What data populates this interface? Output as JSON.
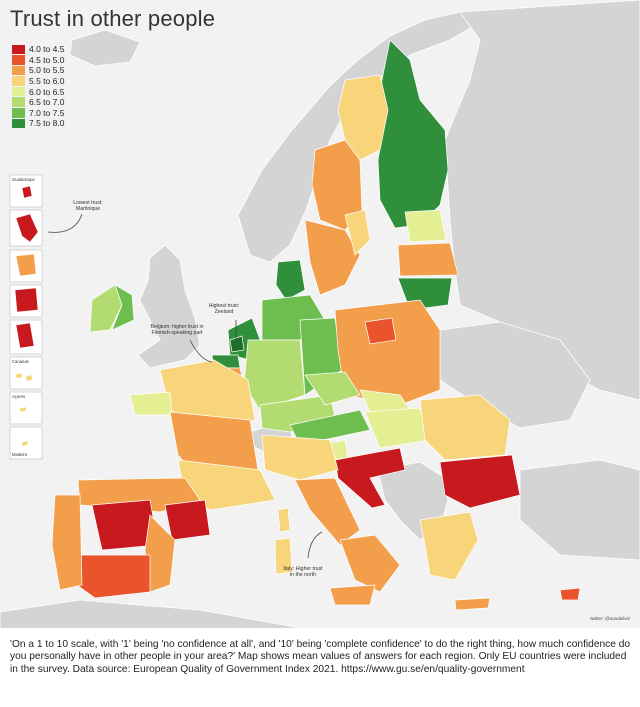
{
  "title": "Trust in other people",
  "legend": [
    {
      "label": "4.0 to 4.5",
      "color": "#c8191f"
    },
    {
      "label": "4.5 to 5.0",
      "color": "#e9542d"
    },
    {
      "label": "5.0 to 5.5",
      "color": "#f39e4a"
    },
    {
      "label": "5.5 to 6.0",
      "color": "#f8d57a"
    },
    {
      "label": "6.0 to 6.5",
      "color": "#e4ee93"
    },
    {
      "label": "6.5 to 7.0",
      "color": "#b2dc72"
    },
    {
      "label": "7.0 to 7.5",
      "color": "#6dbd4f"
    },
    {
      "label": "7.5 to 8.0",
      "color": "#2f8f3b"
    }
  ],
  "annotations": {
    "lowest": "Lowest trust:\nMartinique",
    "highest": "Highest trust:\nZeeland",
    "belgium": "Belgium: higher trust in\nFlemish-speaking part",
    "italy": "Italy: Higher trust\nin the north"
  },
  "insets": [
    "Guadeloupe",
    "Canarias",
    "Açores",
    "Madeira"
  ],
  "credit": "twitter: @sundeliviz",
  "caption": {
    "question": "'On a 1 to 10 scale, with '1' being 'no confidence at all', and '10' being 'complete confidence' to do the right thing, how much confidence do you personally have in other people in your area?'",
    "description": " Map shows mean values of answers for each region. Only EU countries were included in the survey. Data source: European Quality of Government Index 2021. https://www.gu.se/en/quality-government"
  },
  "colors": {
    "non_eu_land": "#d4d4d4",
    "sea": "#f2f2f2",
    "border": "#ffffff"
  }
}
